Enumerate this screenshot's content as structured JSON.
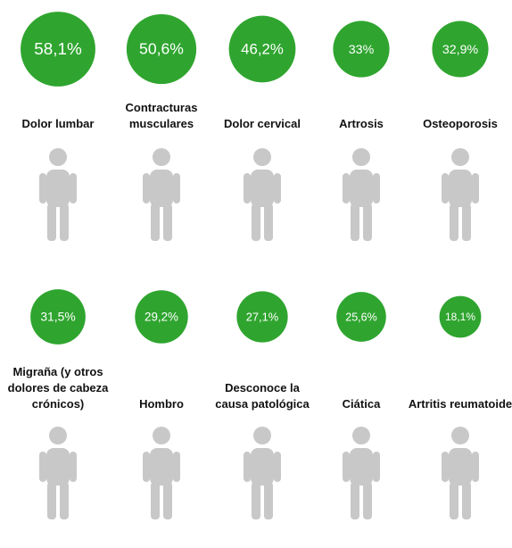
{
  "chart_data": {
    "type": "bubble",
    "categories": [
      "Dolor lumbar",
      "Contracturas musculares",
      "Dolor cervical",
      "Artrosis",
      "Osteoporosis",
      "Migraña (y otros dolores de cabeza crónicos)",
      "Hombro",
      "Desconoce la causa patológica",
      "Ciática",
      "Artritis reumatoide"
    ],
    "values": [
      58.1,
      50.6,
      46.2,
      33,
      32.9,
      31.5,
      29.2,
      27.1,
      25.6,
      18.1
    ],
    "value_labels": [
      "58,1%",
      "50,6%",
      "46,2%",
      "33%",
      "32,9%",
      "31,5%",
      "29,2%",
      "27,1%",
      "25,6%",
      "18,1%"
    ],
    "color": "#2fa52f"
  }
}
